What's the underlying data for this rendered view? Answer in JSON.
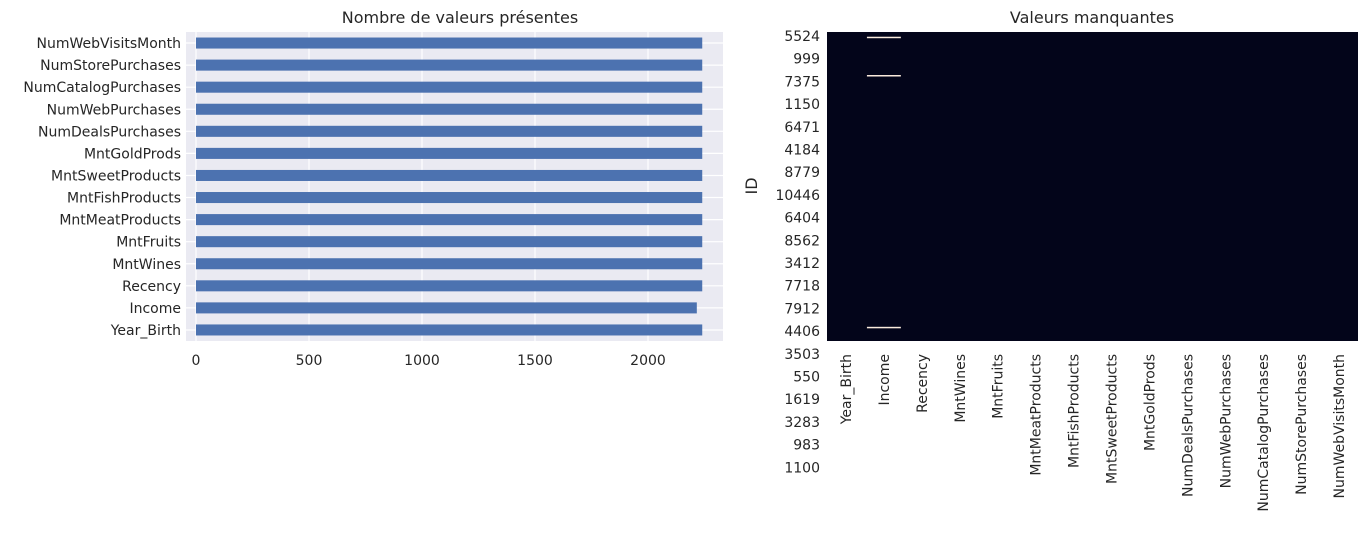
{
  "chart_data": [
    {
      "type": "bar",
      "orientation": "horizontal",
      "title": "Nombre de valeurs présentes",
      "xlabel": "",
      "ylabel": "",
      "xlim": [
        0,
        2350
      ],
      "xticks": [
        0,
        500,
        1000,
        1500,
        2000
      ],
      "grid": true,
      "categories": [
        "Year_Birth",
        "Income",
        "Recency",
        "MntWines",
        "MntFruits",
        "MntMeatProducts",
        "MntFishProducts",
        "MntSweetProducts",
        "MntGoldProds",
        "NumDealsPurchases",
        "NumWebPurchases",
        "NumCatalogPurchases",
        "NumStorePurchases",
        "NumWebVisitsMonth"
      ],
      "values": [
        2240,
        2216,
        2240,
        2240,
        2240,
        2240,
        2240,
        2240,
        2240,
        2240,
        2240,
        2240,
        2240,
        2240
      ],
      "colors": {
        "bar": "#4c72b0",
        "background": "#eaeaf2",
        "grid": "#ffffff"
      }
    },
    {
      "type": "heatmap",
      "title": "Valeurs manquantes",
      "ylabel": "ID",
      "xlabel": "",
      "columns": [
        "Year_Birth",
        "Income",
        "Recency",
        "MntWines",
        "MntFruits",
        "MntMeatProducts",
        "MntFishProducts",
        "MntSweetProducts",
        "MntGoldProds",
        "NumDealsPurchases",
        "NumWebPurchases",
        "NumCatalogPurchases",
        "NumStorePurchases",
        "NumWebVisitsMonth"
      ],
      "row_tick_labels": [
        "5524",
        "999",
        "7375",
        "1150",
        "6471",
        "4184",
        "8779",
        "10446",
        "6404",
        "8562",
        "3412",
        "7718",
        "7912",
        "4406",
        "3503",
        "550",
        "1619",
        "3283",
        "983",
        "1100"
      ],
      "row_count": 2240,
      "missing": [
        {
          "column": "Income",
          "row_fraction": 0.0177
        },
        {
          "column": "Income",
          "row_fraction": 0.1416
        },
        {
          "column": "Income",
          "row_fraction": 0.9565
        }
      ],
      "colors": {
        "present": "#03051a",
        "missing": "#faebdd"
      }
    }
  ]
}
